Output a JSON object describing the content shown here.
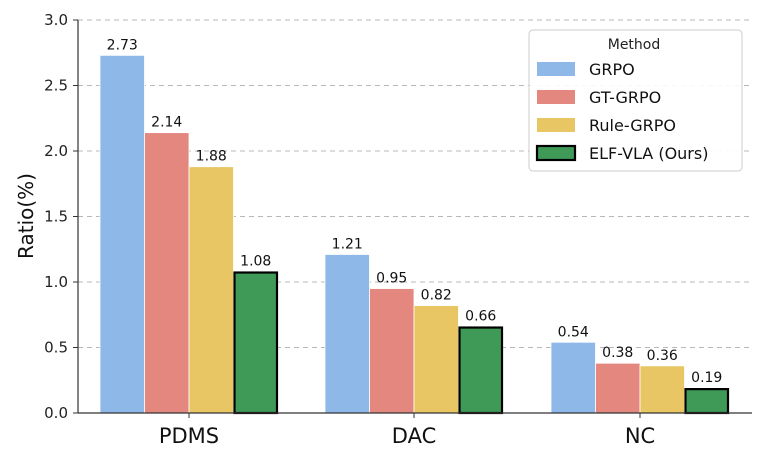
{
  "chart_data": {
    "type": "bar",
    "title": "",
    "xlabel": "",
    "ylabel": "Ratio(%)",
    "ylim": [
      0,
      3.0
    ],
    "yticks": [
      "0.0",
      "0.5",
      "1.0",
      "1.5",
      "2.0",
      "2.5",
      "3.0"
    ],
    "grid": true,
    "categories": [
      "PDMS",
      "DAC",
      "NC"
    ],
    "legend": {
      "title": "Method",
      "placement": "top-right"
    },
    "series": [
      {
        "name": "GRPO",
        "color": "#8db8e8",
        "outlined": false,
        "values": [
          2.73,
          1.21,
          0.54
        ],
        "labels": [
          "2.73",
          "1.21",
          "0.54"
        ]
      },
      {
        "name": "GT-GRPO",
        "color": "#e3877f",
        "outlined": false,
        "values": [
          2.14,
          0.95,
          0.38
        ],
        "labels": [
          "2.14",
          "0.95",
          "0.38"
        ]
      },
      {
        "name": "Rule-GRPO",
        "color": "#e8c664",
        "outlined": false,
        "values": [
          1.88,
          0.82,
          0.36
        ],
        "labels": [
          "1.88",
          "0.82",
          "0.36"
        ]
      },
      {
        "name": "ELF-VLA (Ours)",
        "color": "#3f9a57",
        "outlined": true,
        "values": [
          1.08,
          0.66,
          0.19
        ],
        "labels": [
          "1.08",
          "0.66",
          "0.19"
        ]
      }
    ]
  }
}
